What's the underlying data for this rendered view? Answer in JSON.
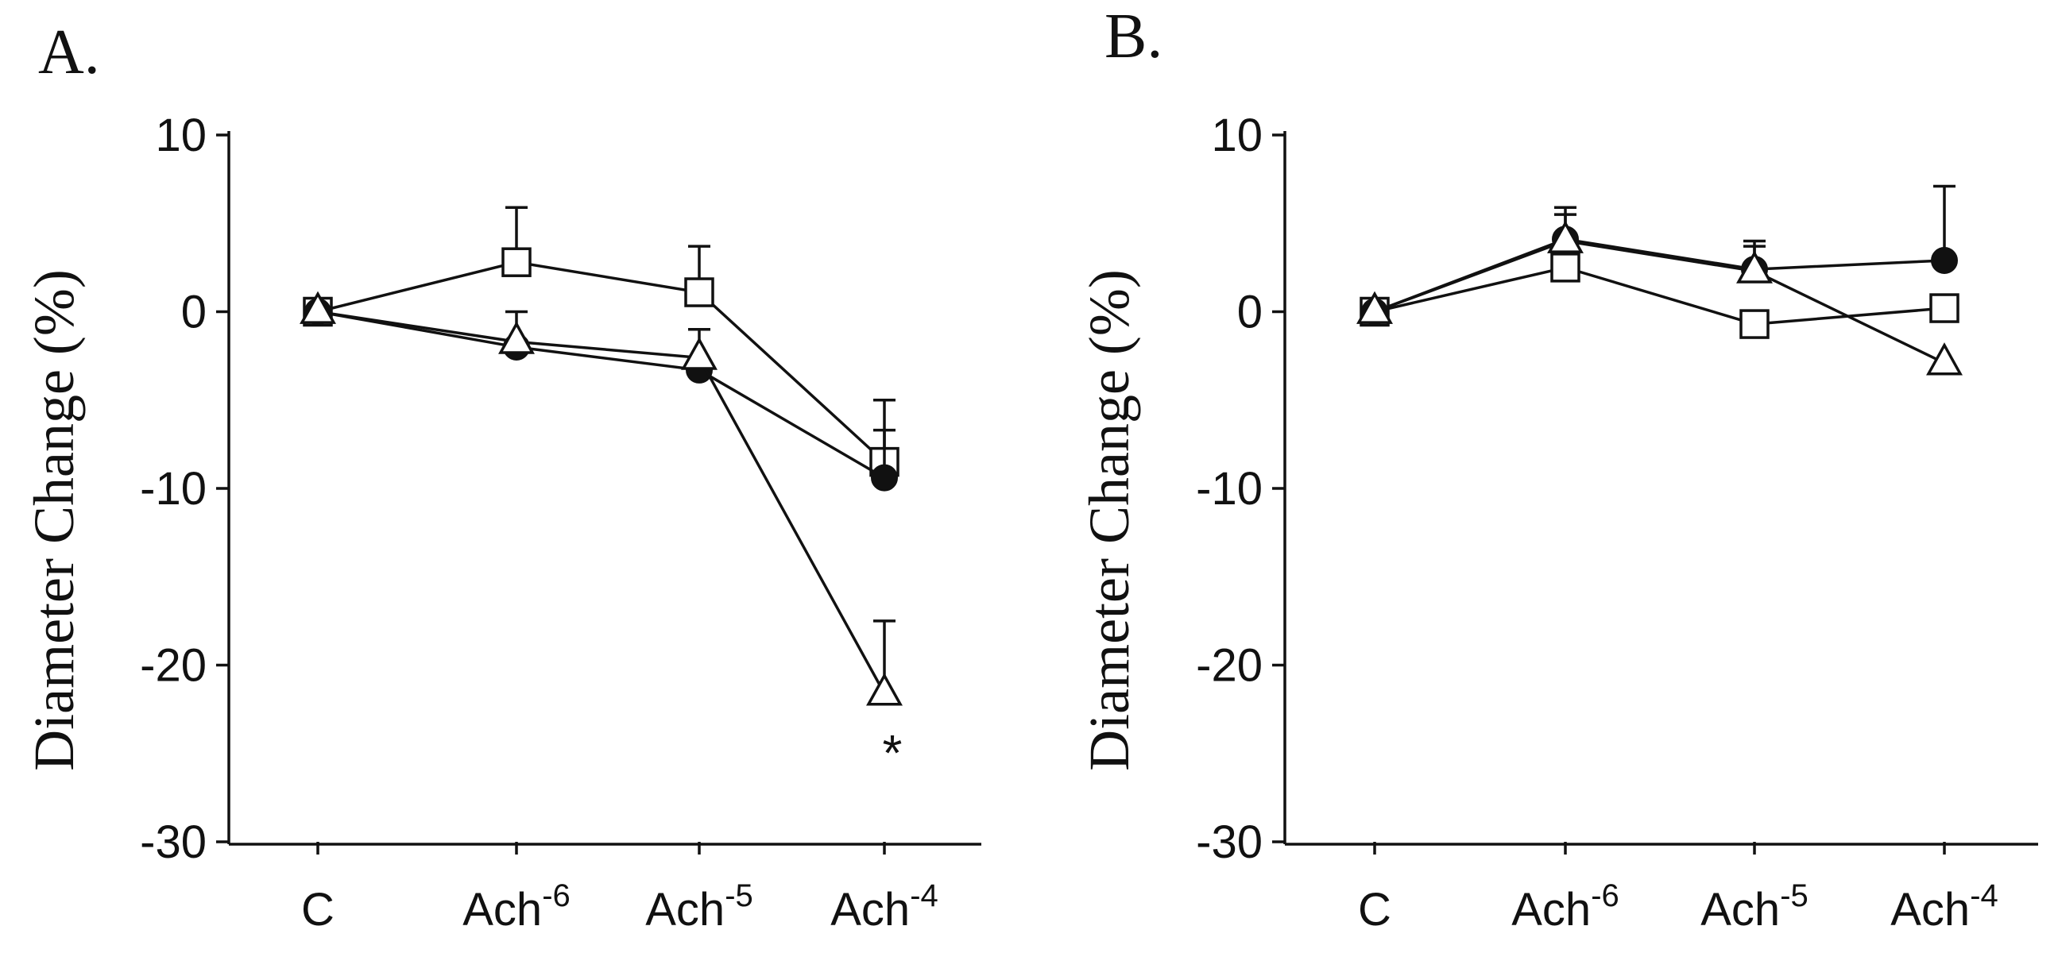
{
  "chart_data": [
    {
      "panel": "A.",
      "type": "line",
      "ylabel": "Diameter Change (%)",
      "xlabel": "",
      "ylim": [
        -30,
        10
      ],
      "yticks": [
        10,
        0,
        -10,
        -20,
        -30
      ],
      "ytick_labels": [
        "10",
        "0",
        "-10",
        "-20",
        "-30"
      ],
      "categories": [
        {
          "base": "C",
          "exp": ""
        },
        {
          "base": "Ach",
          "exp": "-6"
        },
        {
          "base": "Ach",
          "exp": "-5"
        },
        {
          "base": "Ach",
          "exp": "-4"
        }
      ],
      "series": [
        {
          "name": "open square",
          "marker": "square",
          "values": [
            0,
            2.8,
            1.1,
            -8.5
          ],
          "error": [
            0,
            3.1,
            2.6,
            3.5
          ]
        },
        {
          "name": "filled circle",
          "marker": "circle",
          "values": [
            0,
            -2.0,
            -3.3,
            -9.4
          ],
          "error": [
            0,
            0,
            0,
            2.7
          ]
        },
        {
          "name": "open triangle",
          "marker": "triangle",
          "values": [
            0,
            -1.7,
            -2.6,
            -21.6
          ],
          "error": [
            0,
            1.7,
            1.6,
            4.1
          ]
        }
      ],
      "annotations": [
        {
          "text": "*",
          "category": 3,
          "y": -24.6
        }
      ]
    },
    {
      "panel": "B.",
      "type": "line",
      "ylabel": "Diameter Change (%)",
      "xlabel": "",
      "ylim": [
        -30,
        10
      ],
      "yticks": [
        10,
        0,
        -10,
        -20,
        -30
      ],
      "ytick_labels": [
        "10",
        "0",
        "-10",
        "-20",
        "-30"
      ],
      "categories": [
        {
          "base": "C",
          "exp": ""
        },
        {
          "base": "Ach",
          "exp": "-6"
        },
        {
          "base": "Ach",
          "exp": "-5"
        },
        {
          "base": "Ach",
          "exp": "-4"
        }
      ],
      "series": [
        {
          "name": "open square",
          "marker": "square",
          "values": [
            0,
            2.5,
            -0.7,
            0.2
          ],
          "error": [
            0,
            0,
            0,
            0
          ]
        },
        {
          "name": "filled circle",
          "marker": "circle",
          "values": [
            0,
            4.1,
            2.4,
            2.9
          ],
          "error": [
            0,
            1.8,
            1.6,
            4.2
          ]
        },
        {
          "name": "open triangle",
          "marker": "triangle",
          "values": [
            0,
            4.0,
            2.3,
            -2.9
          ],
          "error": [
            0,
            1.5,
            1.4,
            0
          ]
        }
      ],
      "annotations": []
    }
  ]
}
